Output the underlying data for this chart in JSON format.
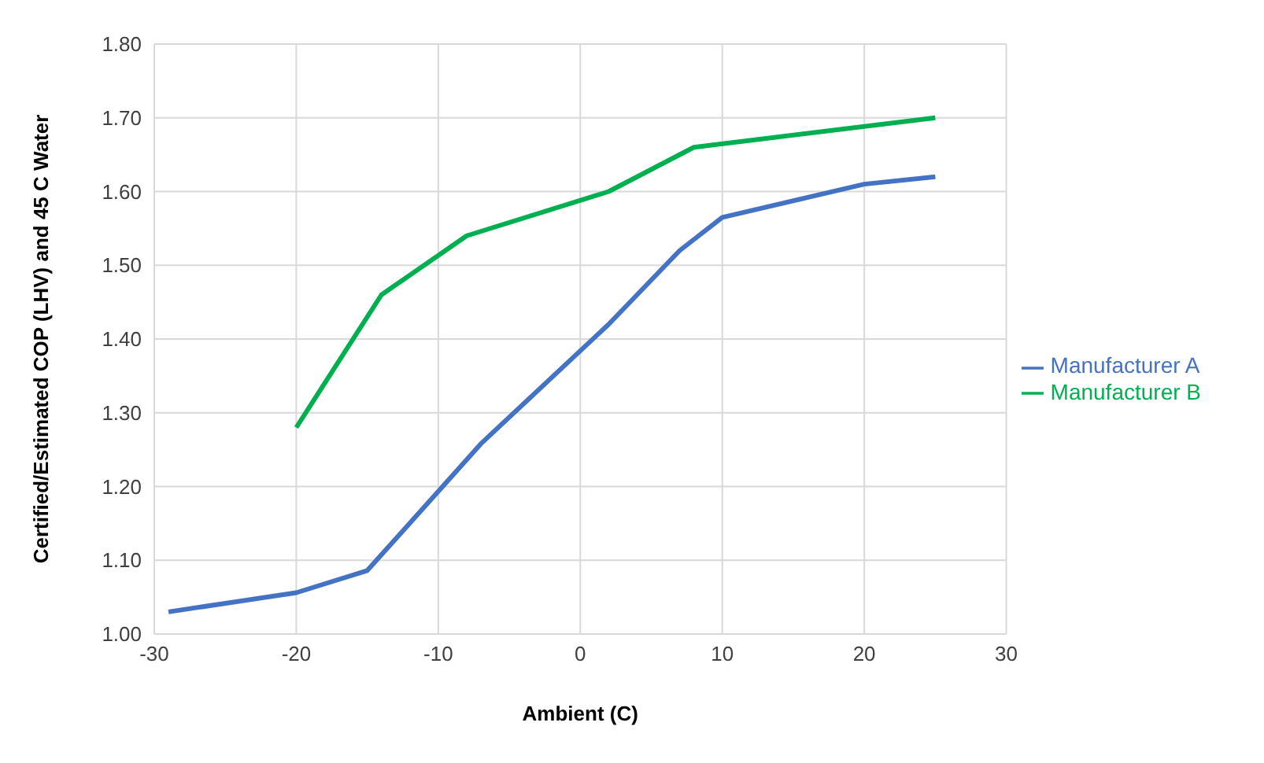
{
  "chart_data": {
    "type": "line",
    "xlabel": "Ambient (C)",
    "ylabel": "Certified/Estimated COP (LHV) and 45 C Water",
    "xlim": [
      -30,
      30
    ],
    "xticks": [
      -30,
      -20,
      -10,
      0,
      10,
      20,
      30
    ],
    "ylim": [
      1.0,
      1.8
    ],
    "yticks": [
      {
        "value": 1.0,
        "label": "1.00"
      },
      {
        "value": 1.1,
        "label": "1.10"
      },
      {
        "value": 1.2,
        "label": "1.20"
      },
      {
        "value": 1.3,
        "label": "1.30"
      },
      {
        "value": 1.4,
        "label": "1.40"
      },
      {
        "value": 1.5,
        "label": "1.50"
      },
      {
        "value": 1.6,
        "label": "1.60"
      },
      {
        "value": 1.7,
        "label": "1.70"
      },
      {
        "value": 1.8,
        "label": "1.80"
      }
    ],
    "grid": true,
    "legend": "right",
    "marker": "none",
    "line_style": "solid",
    "series": [
      {
        "name": "Manufacturer A",
        "color": "#4472c4",
        "x": [
          -29,
          -20,
          -15,
          -7,
          2,
          7,
          10,
          20,
          25
        ],
        "values": [
          1.03,
          1.056,
          1.086,
          1.258,
          1.42,
          1.52,
          1.565,
          1.61,
          1.62
        ]
      },
      {
        "name": "Manufacturer B",
        "color": "#00b050",
        "x": [
          -20,
          -14,
          -8,
          2,
          8,
          25
        ],
        "values": [
          1.28,
          1.46,
          1.54,
          1.6,
          1.66,
          1.7
        ]
      }
    ]
  }
}
